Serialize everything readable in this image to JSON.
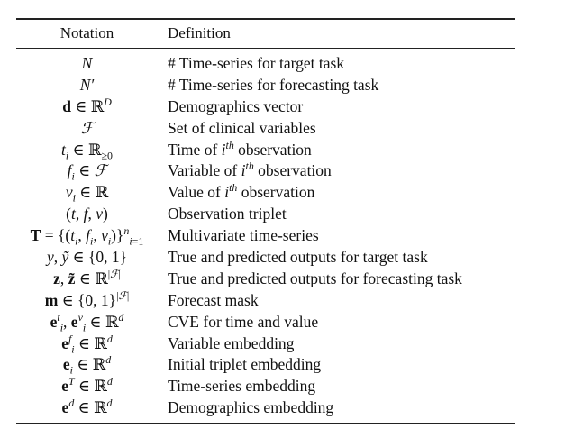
{
  "table": {
    "headers": {
      "notation": "Notation",
      "definition": "Definition"
    },
    "rows": [
      {
        "notation_html": "<span class=\"it\">N</span>",
        "definition": "# Time-series for target task"
      },
      {
        "notation_html": "<span class=\"it\">N′</span>",
        "definition": "# Time-series for forecasting task"
      },
      {
        "notation_html": "<b>d</b> ∈ ℝ<sup><span class=\"it\">D</span></sup>",
        "definition": "Demographics vector"
      },
      {
        "notation_html": "<span class=\"it\">ℱ</span>",
        "definition": "Set of clinical variables"
      },
      {
        "notation_html": "<span class=\"it\">t<sub>i</sub></span> ∈ ℝ<sub>≥0</sub>",
        "definition": "Time of",
        "definition_sup": "th",
        "definition_base": "i",
        "definition_tail": " observation"
      },
      {
        "notation_html": "<span class=\"it\">f<sub>i</sub></span> ∈ <span class=\"it\">ℱ</span>",
        "definition": "Variable of",
        "definition_sup": "th",
        "definition_base": "i",
        "definition_tail": " observation"
      },
      {
        "notation_html": "<span class=\"it\">v<sub>i</sub></span> ∈ ℝ",
        "definition": "Value of",
        "definition_sup": "th",
        "definition_base": "i",
        "definition_tail": " observation"
      },
      {
        "notation_html": "(<span class=\"it\">t</span>, <span class=\"it\">f</span>, <span class=\"it\">v</span>)",
        "definition": "Observation triplet"
      },
      {
        "notation_html": "<b>T</b> = {(<span class=\"it\">t<sub>i</sub></span>, <span class=\"it\">f<sub>i</sub></span>, <span class=\"it\">v<sub>i</sub></span>)}<sup><span class=\"it\">n</span></sup><sub><span class=\"it\">i</span>=1</sub>",
        "definition": "Multivariate time-series"
      },
      {
        "notation_html": "<span class=\"it\">y</span>, <span class=\"it\">ỹ</span> ∈ {0, 1}",
        "definition": "True and predicted outputs for target task"
      },
      {
        "notation_html": "<b>z</b>, <b>z̃</b> ∈ ℝ<sup>|<span class=\"it\">ℱ</span>|</sup>",
        "definition": "True and predicted outputs for forecasting task"
      },
      {
        "notation_html": "<b>m</b> ∈ {0, 1}<sup>|<span class=\"it\">ℱ</span>|</sup>",
        "definition": "Forecast mask"
      },
      {
        "notation_html": "<b>e</b><sup><span class=\"it\">t</span></sup><sub><span class=\"it\">i</span></sub>, <b>e</b><sup><span class=\"it\">v</span></sup><sub><span class=\"it\">i</span></sub> ∈ ℝ<sup><span class=\"it\">d</span></sup>",
        "definition": "CVE for time and value"
      },
      {
        "notation_html": "<b>e</b><sup><span class=\"it\">f</span></sup><sub><span class=\"it\">i</span></sub> ∈ ℝ<sup><span class=\"it\">d</span></sup>",
        "definition": "Variable embedding"
      },
      {
        "notation_html": "<b>e</b><sub><span class=\"it\">i</span></sub> ∈ ℝ<sup><span class=\"it\">d</span></sup>",
        "definition": "Initial triplet embedding"
      },
      {
        "notation_html": "<b>e</b><sup><span class=\"it\">T</span></sup> ∈ ℝ<sup><span class=\"it\">d</span></sup>",
        "definition": "Time-series embedding"
      },
      {
        "notation_html": "<b>e</b><sup><span class=\"it\">d</span></sup> ∈ ℝ<sup><span class=\"it\">d</span></sup>",
        "definition": "Demographics embedding"
      }
    ]
  }
}
